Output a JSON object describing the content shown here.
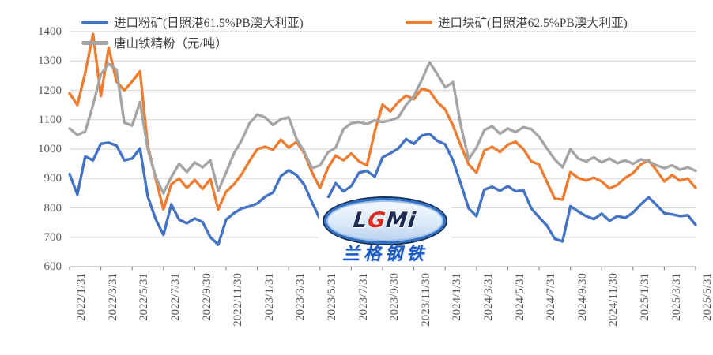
{
  "page": {
    "background": "#ffffff"
  },
  "legend": {
    "items": [
      {
        "key": "imported-pb-fines",
        "label": "进口粉矿(日照港61.5%PB澳大利亚)",
        "color": "#4472C4"
      },
      {
        "key": "imported-pb-lump",
        "label": "进口块矿(日照港62.5%PB澳大利亚)",
        "color": "#ED7D31"
      },
      {
        "key": "tangshan-iron-concentrate",
        "label": "唐山铁精粉（元/吨）",
        "color": "#A5A5A5"
      }
    ]
  },
  "watermark": {
    "logo_parts": [
      {
        "text": "L",
        "color": "#1b2a52"
      },
      {
        "text": "G",
        "color": "#e02b20"
      },
      {
        "text": "Mi",
        "color": "#1b2a52"
      }
    ],
    "company": "兰格钢铁",
    "company_color": "#1d5ac4",
    "ellipse_border": "#2e6fc3"
  },
  "chart_data": {
    "type": "line",
    "title": "",
    "xlabel": "",
    "ylabel": "",
    "ylim": [
      600,
      1400
    ],
    "y_ticks": [
      600,
      700,
      800,
      900,
      1000,
      1100,
      1200,
      1300,
      1400
    ],
    "x_tick_labels": [
      "2022/1/31",
      "2022/3/31",
      "2022/5/31",
      "2022/7/31",
      "2022/9/30",
      "2022/11/30",
      "2023/1/31",
      "2023/3/31",
      "2023/5/31",
      "2023/7/31",
      "2023/9/30",
      "2023/11/30",
      "2024/1/31",
      "2024/3/31",
      "2024/5/31",
      "2024/7/31",
      "2024/9/30",
      "2024/11/30",
      "2025/1/31",
      "2025/3/31",
      "2025/5/31"
    ],
    "x_unit": "semi-monthly points from 2022/1/31 to 2025/5/31",
    "grid": "horizontal",
    "gridline_color": "#D9D9D9",
    "axis_line_color": "#BFBFBF",
    "tick_color": "#8c8c8c",
    "axis_text_color": "#595959",
    "legend_position": "top",
    "series": [
      {
        "name": "进口粉矿(日照港61.5%PB澳大利亚)",
        "key": "imported-pb-fines",
        "color": "#4472C4",
        "values": [
          915,
          845,
          975,
          962,
          1018,
          1022,
          1012,
          962,
          968,
          1002,
          838,
          762,
          708,
          812,
          760,
          748,
          764,
          752,
          700,
          675,
          760,
          782,
          798,
          805,
          815,
          838,
          852,
          908,
          928,
          912,
          878,
          818,
          762,
          832,
          884,
          856,
          874,
          920,
          926,
          906,
          972,
          986,
          1002,
          1034,
          1018,
          1046,
          1052,
          1028,
          1016,
          962,
          882,
          798,
          772,
          862,
          872,
          858,
          874,
          856,
          860,
          798,
          768,
          740,
          695,
          686,
          806,
          788,
          772,
          762,
          780,
          756,
          772,
          766,
          784,
          812,
          836,
          810,
          782,
          778,
          772,
          775,
          742
        ]
      },
      {
        "name": "进口块矿(日照港62.5%PB澳大利亚)",
        "key": "imported-pb-lump",
        "color": "#ED7D31",
        "values": [
          1190,
          1150,
          1260,
          1392,
          1180,
          1345,
          1230,
          1200,
          1230,
          1265,
          1010,
          900,
          795,
          880,
          900,
          868,
          895,
          865,
          898,
          795,
          855,
          880,
          915,
          960,
          1000,
          1008,
          998,
          1032,
          1005,
          1025,
          985,
          920,
          868,
          935,
          978,
          962,
          985,
          958,
          945,
          1060,
          1152,
          1128,
          1160,
          1182,
          1170,
          1205,
          1198,
          1160,
          1135,
          1080,
          1012,
          948,
          920,
          995,
          1008,
          990,
          1015,
          1025,
          1000,
          958,
          948,
          888,
          832,
          828,
          922,
          902,
          893,
          903,
          890,
          866,
          878,
          902,
          918,
          948,
          962,
          928,
          890,
          912,
          893,
          900,
          868
        ]
      },
      {
        "name": "唐山铁精粉（元/吨）",
        "key": "tangshan-iron-concentrate",
        "color": "#A5A5A5",
        "values": [
          1070,
          1048,
          1060,
          1150,
          1255,
          1290,
          1270,
          1090,
          1080,
          1160,
          1000,
          905,
          850,
          905,
          950,
          922,
          955,
          938,
          962,
          858,
          920,
          985,
          1030,
          1088,
          1118,
          1108,
          1082,
          1102,
          1108,
          1035,
          990,
          935,
          945,
          988,
          1005,
          1068,
          1088,
          1092,
          1085,
          1098,
          1092,
          1098,
          1108,
          1150,
          1180,
          1235,
          1295,
          1255,
          1210,
          1228,
          1080,
          965,
          1005,
          1065,
          1078,
          1052,
          1070,
          1058,
          1075,
          1068,
          1042,
          1002,
          965,
          938,
          1000,
          968,
          958,
          972,
          955,
          968,
          952,
          962,
          950,
          965,
          958,
          945,
          935,
          945,
          930,
          938,
          926
        ]
      }
    ]
  }
}
